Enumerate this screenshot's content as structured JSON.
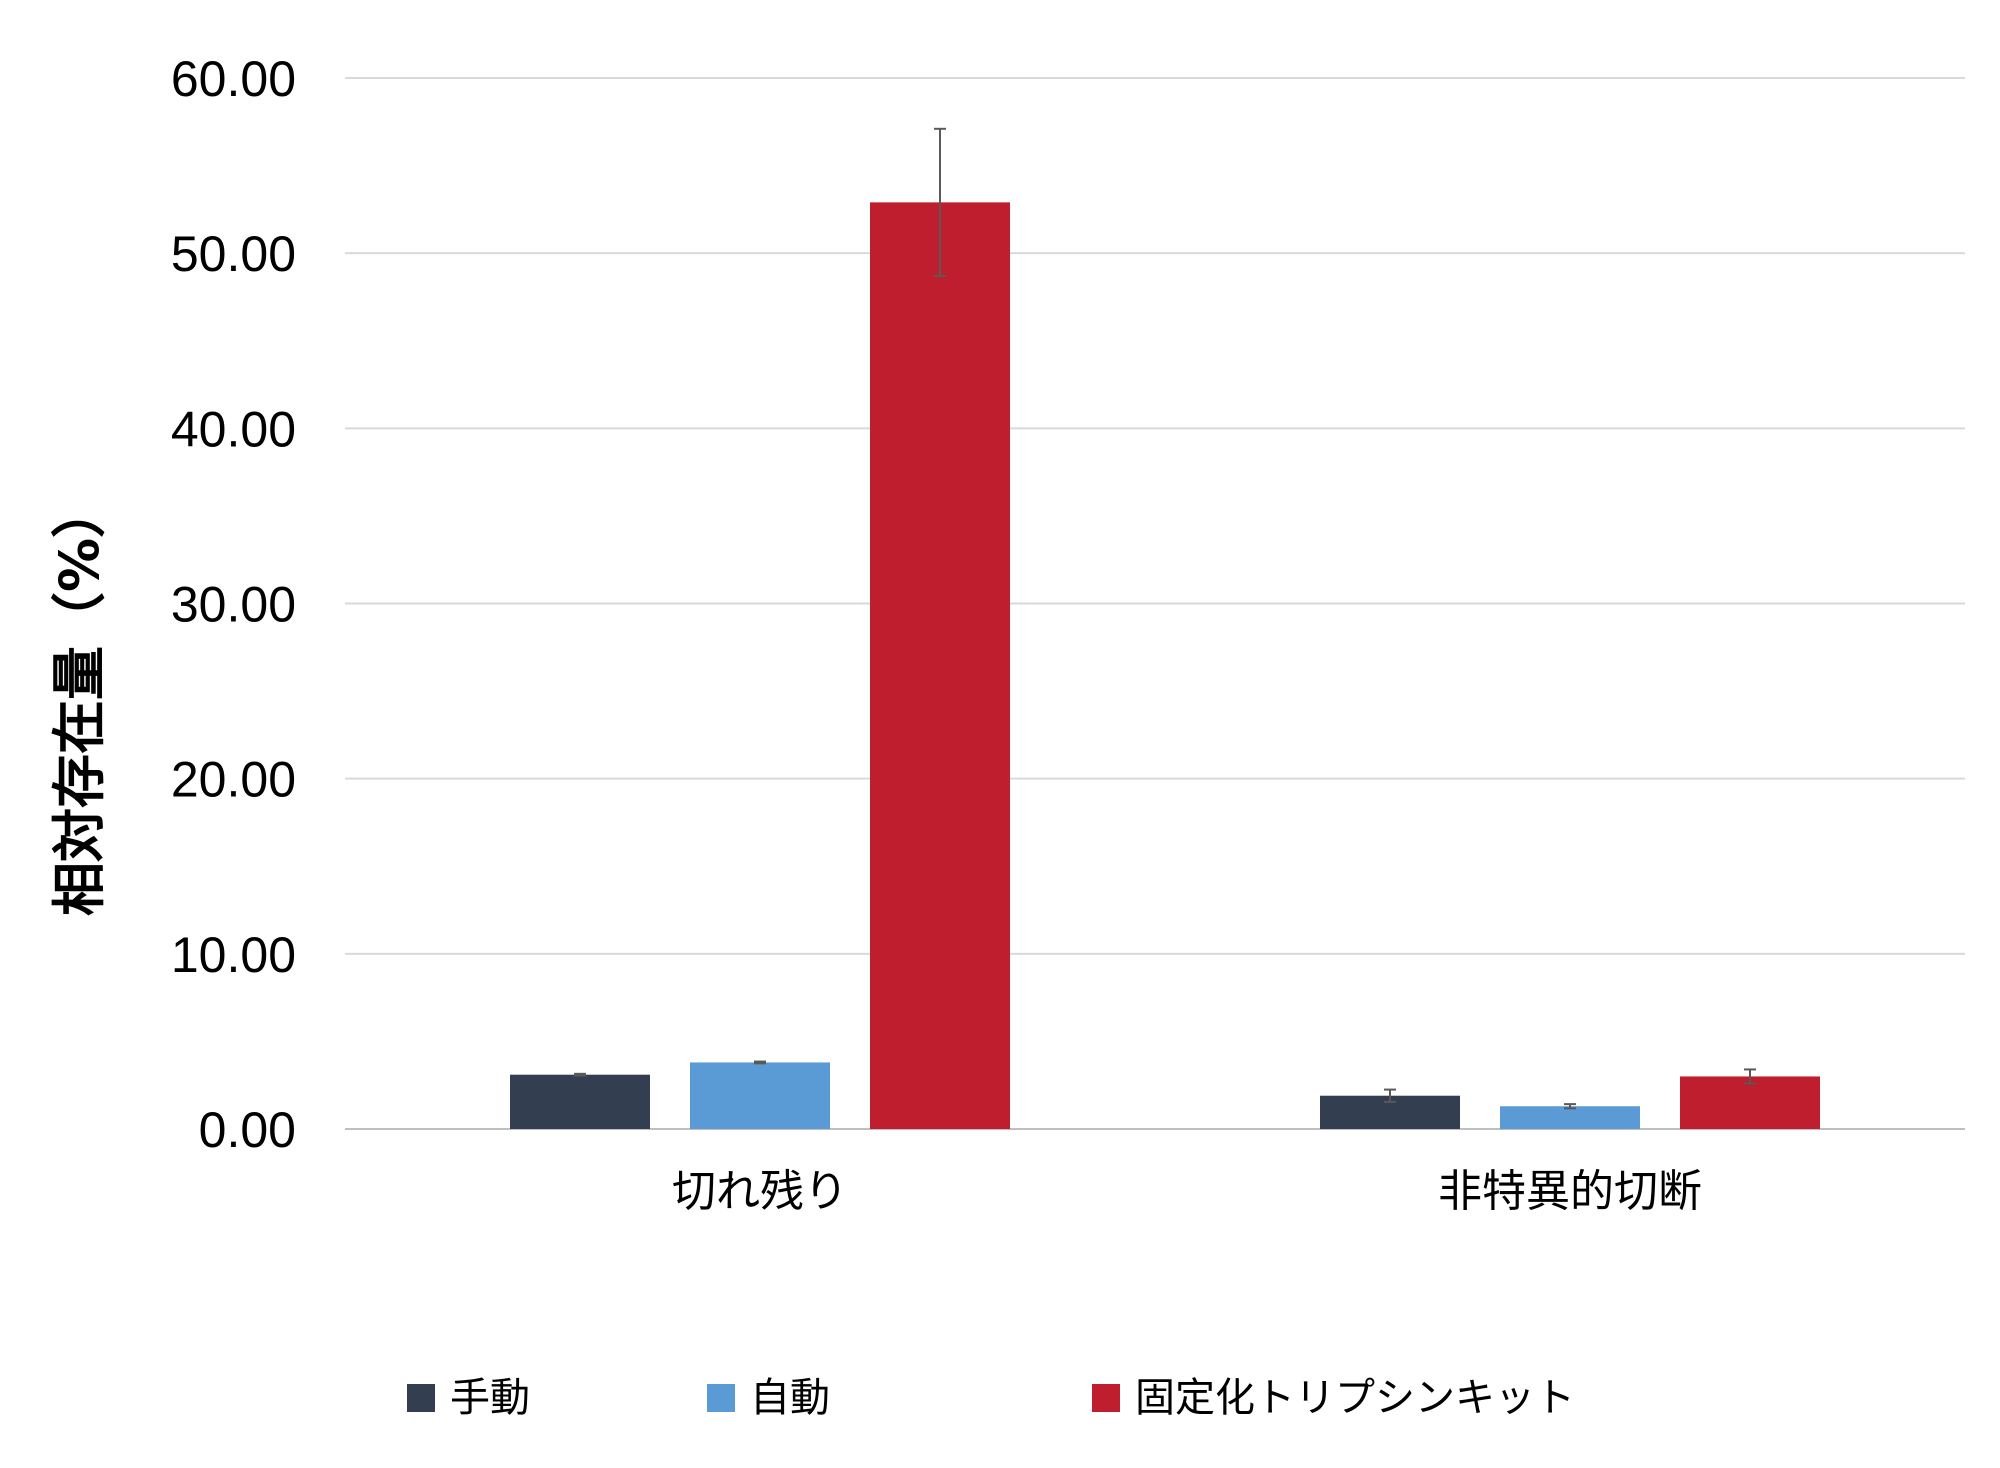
{
  "chart_data": {
    "type": "bar",
    "categories": [
      "切れ残り",
      "非特異的切断"
    ],
    "series": [
      {
        "name": "手動",
        "color": "#333F50",
        "values": [
          3.1,
          1.9
        ],
        "errors": [
          0.05,
          0.35
        ]
      },
      {
        "name": "自動",
        "color": "#5B9BD5",
        "values": [
          3.8,
          1.3
        ],
        "errors": [
          0.05,
          0.12
        ]
      },
      {
        "name": "固定化トリプシンキット",
        "color": "#BE1E2D",
        "values": [
          52.9,
          3.0
        ],
        "errors": [
          4.2,
          0.4
        ]
      }
    ],
    "title": "",
    "xlabel": "",
    "ylabel": "相対存在量（%）",
    "ylim": [
      0,
      60
    ],
    "yticks": [
      "0.00",
      "10.00",
      "20.00",
      "30.00",
      "40.00",
      "50.00",
      "60.00"
    ],
    "grid": true,
    "legend": "bottom"
  }
}
